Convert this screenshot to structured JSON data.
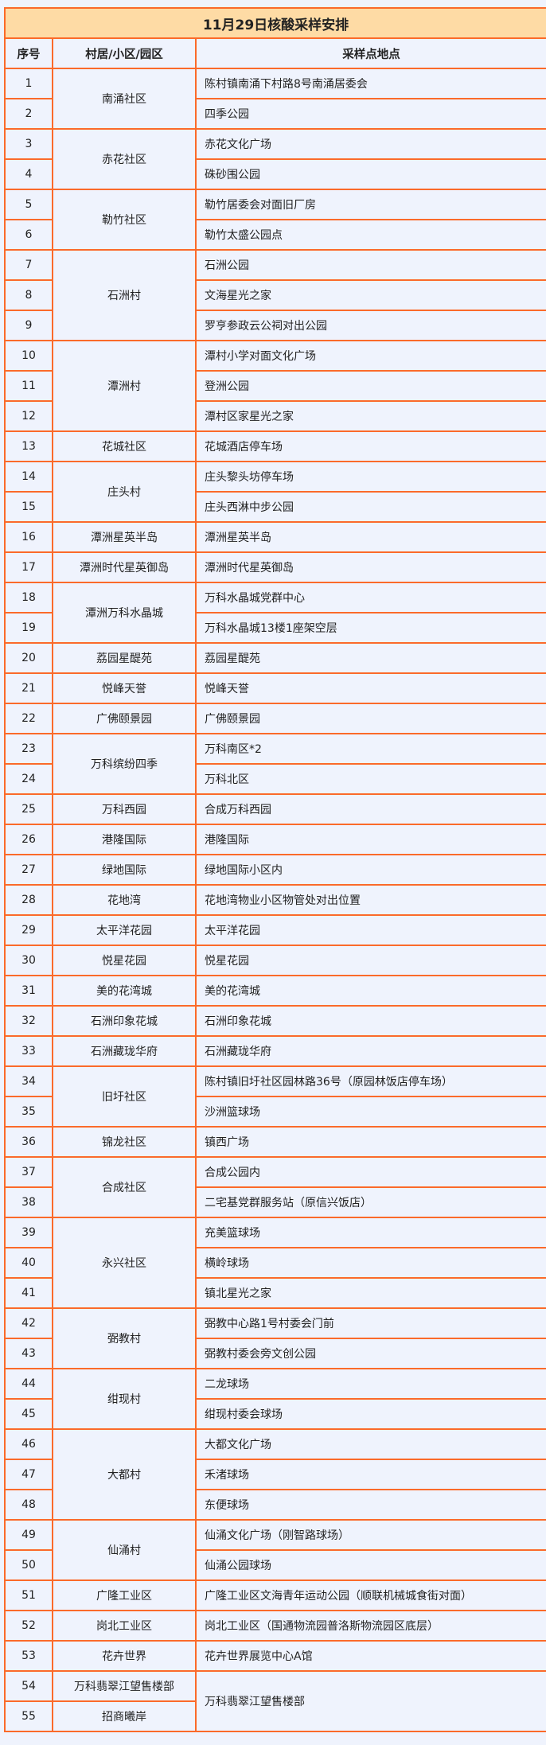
{
  "title": "11月29日核酸采样安排",
  "headers": {
    "num": "序号",
    "community": "村居/小区/园区",
    "location": "采样点地点"
  },
  "colors": {
    "border": "#fb6a2a",
    "title_bg": "#fedba5",
    "cell_bg": "#eff3fd"
  },
  "rows": [
    {
      "num": "1",
      "community": "南涌社区",
      "community_rows": 2,
      "location": "陈村镇南涌下村路8号南涌居委会"
    },
    {
      "num": "2",
      "location": "四季公园"
    },
    {
      "num": "3",
      "community": "赤花社区",
      "community_rows": 2,
      "location": "赤花文化广场"
    },
    {
      "num": "4",
      "location": "硃砂围公园"
    },
    {
      "num": "5",
      "community": "勒竹社区",
      "community_rows": 2,
      "location": "勒竹居委会对面旧厂房"
    },
    {
      "num": "6",
      "location": "勒竹太盛公园点"
    },
    {
      "num": "7",
      "community": "石洲村",
      "community_rows": 3,
      "location": "石洲公园"
    },
    {
      "num": "8",
      "location": "文海星光之家"
    },
    {
      "num": "9",
      "location": "罗亨参政云公祠对出公园"
    },
    {
      "num": "10",
      "community": "潭洲村",
      "community_rows": 3,
      "location": "潭村小学对面文化广场"
    },
    {
      "num": "11",
      "location": "登洲公园"
    },
    {
      "num": "12",
      "location": "潭村区家星光之家"
    },
    {
      "num": "13",
      "community": "花城社区",
      "community_rows": 1,
      "location": "花城酒店停车场"
    },
    {
      "num": "14",
      "community": "庄头村",
      "community_rows": 2,
      "location": "庄头黎头坊停车场"
    },
    {
      "num": "15",
      "location": "庄头西淋中步公园"
    },
    {
      "num": "16",
      "community": "潭洲星英半岛",
      "community_rows": 1,
      "location": "潭洲星英半岛"
    },
    {
      "num": "17",
      "community": "潭洲时代星英御岛",
      "community_rows": 1,
      "location": "潭洲时代星英御岛"
    },
    {
      "num": "18",
      "community": "潭洲万科水晶城",
      "community_rows": 2,
      "location": "万科水晶城党群中心"
    },
    {
      "num": "19",
      "location": "万科水晶城13楼1座架空层"
    },
    {
      "num": "20",
      "community": "荔园星醍苑",
      "community_rows": 1,
      "location": "荔园星醍苑"
    },
    {
      "num": "21",
      "community": "悦峰天誉",
      "community_rows": 1,
      "location": "悦峰天誉"
    },
    {
      "num": "22",
      "community": "广佛颐景园",
      "community_rows": 1,
      "location": "广佛颐景园"
    },
    {
      "num": "23",
      "community": "万科缤纷四季",
      "community_rows": 2,
      "location": "万科南区*2"
    },
    {
      "num": "24",
      "location": "万科北区"
    },
    {
      "num": "25",
      "community": "万科西园",
      "community_rows": 1,
      "location": "合成万科西园"
    },
    {
      "num": "26",
      "community": "港隆国际",
      "community_rows": 1,
      "location": "港隆国际"
    },
    {
      "num": "27",
      "community": "绿地国际",
      "community_rows": 1,
      "location": "绿地国际小区内"
    },
    {
      "num": "28",
      "community": "花地湾",
      "community_rows": 1,
      "location": "花地湾物业小区物管处对出位置"
    },
    {
      "num": "29",
      "community": "太平洋花园",
      "community_rows": 1,
      "location": "太平洋花园"
    },
    {
      "num": "30",
      "community": "悦星花园",
      "community_rows": 1,
      "location": "悦星花园"
    },
    {
      "num": "31",
      "community": "美的花湾城",
      "community_rows": 1,
      "location": "美的花湾城"
    },
    {
      "num": "32",
      "community": "石洲印象花城",
      "community_rows": 1,
      "location": "石洲印象花城"
    },
    {
      "num": "33",
      "community": "石洲藏珑华府",
      "community_rows": 1,
      "location": "石洲藏珑华府"
    },
    {
      "num": "34",
      "community": "旧圩社区",
      "community_rows": 2,
      "location": "陈村镇旧圩社区园林路36号（原园林饭店停车场）"
    },
    {
      "num": "35",
      "location": "沙洲篮球场"
    },
    {
      "num": "36",
      "community": "锦龙社区",
      "community_rows": 1,
      "location": "镇西广场"
    },
    {
      "num": "37",
      "community": "合成社区",
      "community_rows": 2,
      "location": "合成公园内"
    },
    {
      "num": "38",
      "location": "二宅基党群服务站（原信兴饭店）"
    },
    {
      "num": "39",
      "community": "永兴社区",
      "community_rows": 3,
      "location": "充美篮球场"
    },
    {
      "num": "40",
      "location": "横岭球场"
    },
    {
      "num": "41",
      "location": "镇北星光之家"
    },
    {
      "num": "42",
      "community": "弼教村",
      "community_rows": 2,
      "location": "弼教中心路1号村委会门前"
    },
    {
      "num": "43",
      "location": "弼教村委会旁文创公园"
    },
    {
      "num": "44",
      "community": "绀现村",
      "community_rows": 2,
      "location": "二龙球场"
    },
    {
      "num": "45",
      "location": "绀现村委会球场"
    },
    {
      "num": "46",
      "community": "大都村",
      "community_rows": 3,
      "location": "大都文化广场"
    },
    {
      "num": "47",
      "location": "禾渚球场"
    },
    {
      "num": "48",
      "location": "东便球场"
    },
    {
      "num": "49",
      "community": "仙涌村",
      "community_rows": 2,
      "location": "仙涌文化广场（刚智路球场）"
    },
    {
      "num": "50",
      "location": "仙涌公园球场"
    },
    {
      "num": "51",
      "community": "广隆工业区",
      "community_rows": 1,
      "location": "广隆工业区文海青年运动公园（顺联机械城食街对面）"
    },
    {
      "num": "52",
      "community": "岗北工业区",
      "community_rows": 1,
      "location": "岗北工业区（国通物流园普洛斯物流园区底层）"
    },
    {
      "num": "53",
      "community": "花卉世界",
      "community_rows": 1,
      "location": "花卉世界展览中心A馆"
    },
    {
      "num": "54",
      "community": "万科翡翠江望售楼部",
      "community_rows": 1,
      "location": "万科翡翠江望售楼部",
      "location_rows": 2
    },
    {
      "num": "55",
      "community": "招商曦岸",
      "community_rows": 1
    }
  ]
}
